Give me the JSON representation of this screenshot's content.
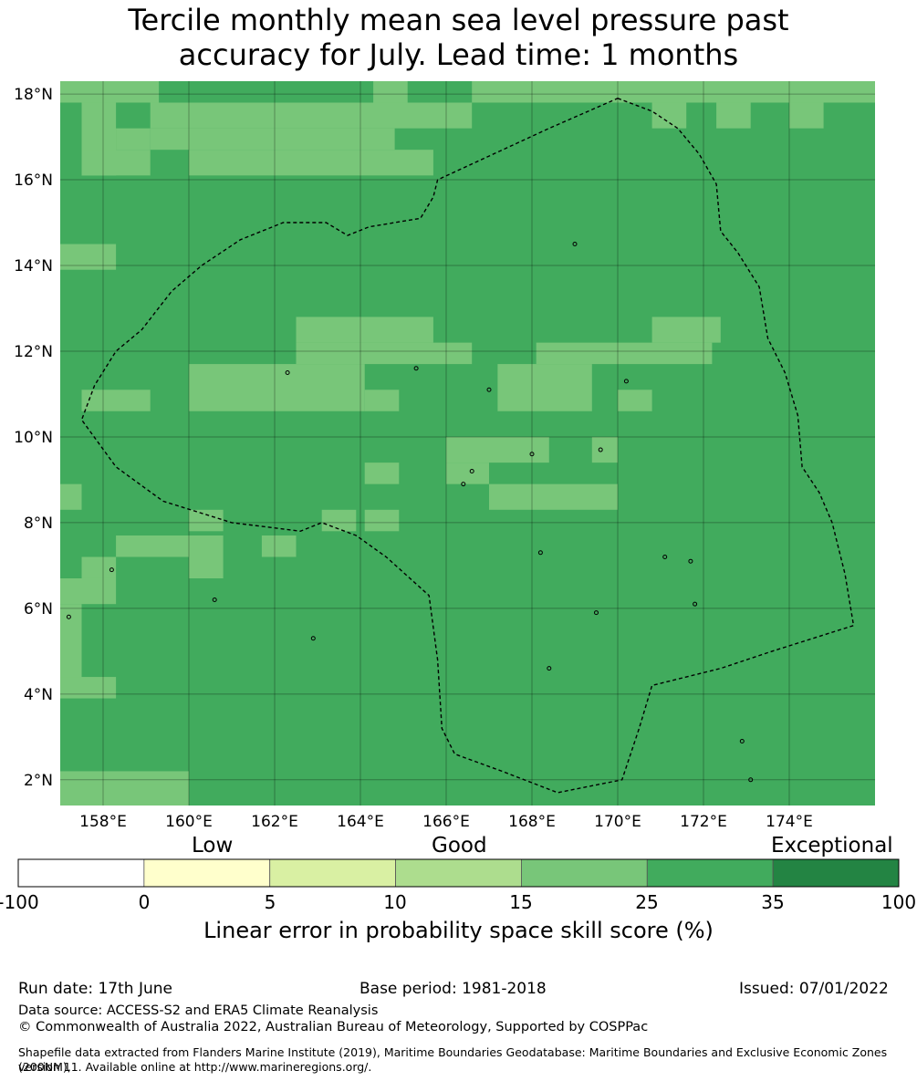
{
  "title_line1": "Tercile monthly mean sea level pressure past",
  "title_line2": "accuracy for July. Lead time: 1 months",
  "map": {
    "lon_labels": [
      "158°E",
      "160°E",
      "162°E",
      "164°E",
      "166°E",
      "168°E",
      "170°E",
      "172°E",
      "174°E"
    ],
    "lat_labels": [
      "18°N",
      "16°N",
      "14°N",
      "12°N",
      "10°N",
      "8°N",
      "6°N",
      "4°N",
      "2°N"
    ],
    "lon_values": [
      158,
      160,
      162,
      164,
      166,
      168,
      170,
      172,
      174
    ],
    "lat_values": [
      18,
      16,
      14,
      12,
      10,
      8,
      6,
      4,
      2
    ],
    "lon_range": [
      157,
      176
    ],
    "lat_range": [
      1.4,
      18.3
    ],
    "base_color": "#41ab5d",
    "light_color": "#78c679",
    "light_regions": [
      {
        "lon": [
          157,
          159.3
        ],
        "lat": [
          17.8,
          18.3
        ]
      },
      {
        "lon": [
          164.3,
          165.1
        ],
        "lat": [
          17.8,
          18.3
        ]
      },
      {
        "lon": [
          166.6,
          176
        ],
        "lat": [
          17.8,
          18.3
        ]
      },
      {
        "lon": [
          157.5,
          158.3
        ],
        "lat": [
          16.1,
          17.8
        ]
      },
      {
        "lon": [
          158.3,
          159.1
        ],
        "lat": [
          16.7,
          17.2
        ]
      },
      {
        "lon": [
          159.1,
          166.6
        ],
        "lat": [
          17.2,
          17.8
        ]
      },
      {
        "lon": [
          159.1,
          164.8
        ],
        "lat": [
          16.7,
          17.2
        ]
      },
      {
        "lon": [
          157.5,
          159.1
        ],
        "lat": [
          16.1,
          16.7
        ]
      },
      {
        "lon": [
          160.0,
          165.7
        ],
        "lat": [
          16.1,
          16.7
        ]
      },
      {
        "lon": [
          170.8,
          171.6
        ],
        "lat": [
          17.2,
          17.8
        ]
      },
      {
        "lon": [
          172.3,
          173.1
        ],
        "lat": [
          17.2,
          17.8
        ]
      },
      {
        "lon": [
          174.0,
          174.8
        ],
        "lat": [
          17.2,
          17.8
        ]
      },
      {
        "lon": [
          157,
          158.3
        ],
        "lat": [
          13.9,
          14.5
        ]
      },
      {
        "lon": [
          162.5,
          165.7
        ],
        "lat": [
          12.2,
          12.8
        ]
      },
      {
        "lon": [
          162.5,
          166.6
        ],
        "lat": [
          11.7,
          12.2
        ]
      },
      {
        "lon": [
          160.0,
          164.1
        ],
        "lat": [
          10.6,
          11.7
        ]
      },
      {
        "lon": [
          157.5,
          159.1
        ],
        "lat": [
          10.6,
          11.1
        ]
      },
      {
        "lon": [
          164.1,
          164.9
        ],
        "lat": [
          10.6,
          11.1
        ]
      },
      {
        "lon": [
          168.1,
          172.2
        ],
        "lat": [
          11.7,
          12.2
        ]
      },
      {
        "lon": [
          170.8,
          172.4
        ],
        "lat": [
          12.2,
          12.8
        ]
      },
      {
        "lon": [
          167.2,
          169.4
        ],
        "lat": [
          10.6,
          11.7
        ]
      },
      {
        "lon": [
          170.0,
          170.8
        ],
        "lat": [
          10.6,
          11.1
        ]
      },
      {
        "lon": [
          166.0,
          168.4
        ],
        "lat": [
          9.4,
          10.0
        ]
      },
      {
        "lon": [
          169.4,
          170.0
        ],
        "lat": [
          9.4,
          10.0
        ]
      },
      {
        "lon": [
          164.1,
          164.9
        ],
        "lat": [
          8.9,
          9.4
        ]
      },
      {
        "lon": [
          166.0,
          167.0
        ],
        "lat": [
          8.9,
          9.4
        ]
      },
      {
        "lon": [
          167.0,
          170.0
        ],
        "lat": [
          8.3,
          8.9
        ]
      },
      {
        "lon": [
          157,
          157.5
        ],
        "lat": [
          8.3,
          8.9
        ]
      },
      {
        "lon": [
          160.0,
          160.8
        ],
        "lat": [
          7.8,
          8.3
        ]
      },
      {
        "lon": [
          163.1,
          163.9
        ],
        "lat": [
          7.8,
          8.3
        ]
      },
      {
        "lon": [
          164.1,
          164.9
        ],
        "lat": [
          7.8,
          8.3
        ]
      },
      {
        "lon": [
          158.3,
          160.0
        ],
        "lat": [
          7.2,
          7.7
        ]
      },
      {
        "lon": [
          160.0,
          160.8
        ],
        "lat": [
          6.7,
          7.7
        ]
      },
      {
        "lon": [
          161.7,
          162.5
        ],
        "lat": [
          7.2,
          7.7
        ]
      },
      {
        "lon": [
          157.5,
          158.3
        ],
        "lat": [
          6.7,
          7.2
        ]
      },
      {
        "lon": [
          157,
          158.3
        ],
        "lat": [
          6.1,
          6.7
        ]
      },
      {
        "lon": [
          157,
          157.5
        ],
        "lat": [
          3.9,
          6.1
        ]
      },
      {
        "lon": [
          157,
          158.3
        ],
        "lat": [
          3.9,
          4.4
        ]
      },
      {
        "lon": [
          157,
          160.0
        ],
        "lat": [
          1.9,
          2.2
        ]
      },
      {
        "lon": [
          157,
          160.0
        ],
        "lat": [
          1.4,
          1.9
        ]
      },
      {
        "lon": [
          157,
          157.5
        ],
        "lat": [
          1.4,
          1.6
        ]
      }
    ],
    "eez_boundary": [
      [
        170.0,
        17.9
      ],
      [
        170.8,
        17.6
      ],
      [
        171.4,
        17.2
      ],
      [
        171.9,
        16.6
      ],
      [
        172.3,
        15.9
      ],
      [
        172.4,
        14.8
      ],
      [
        172.8,
        14.3
      ],
      [
        173.3,
        13.5
      ],
      [
        173.5,
        12.3
      ],
      [
        173.9,
        11.5
      ],
      [
        174.2,
        10.5
      ],
      [
        174.3,
        9.3
      ],
      [
        174.7,
        8.7
      ],
      [
        175.0,
        8.0
      ],
      [
        175.3,
        6.8
      ],
      [
        175.5,
        5.6
      ],
      [
        173.6,
        5.0
      ],
      [
        172.4,
        4.6
      ],
      [
        170.8,
        4.2
      ],
      [
        170.5,
        3.2
      ],
      [
        170.1,
        2.0
      ],
      [
        168.6,
        1.7
      ],
      [
        167.3,
        2.2
      ],
      [
        166.2,
        2.6
      ],
      [
        165.9,
        3.2
      ],
      [
        165.8,
        4.8
      ],
      [
        165.6,
        6.3
      ],
      [
        164.6,
        7.2
      ],
      [
        163.9,
        7.7
      ],
      [
        163.1,
        8.0
      ],
      [
        162.6,
        7.8
      ],
      [
        161.0,
        8.0
      ],
      [
        159.4,
        8.5
      ],
      [
        158.3,
        9.3
      ],
      [
        157.5,
        10.4
      ],
      [
        157.8,
        11.2
      ],
      [
        158.3,
        12.0
      ],
      [
        158.9,
        12.5
      ],
      [
        159.6,
        13.4
      ],
      [
        160.3,
        14.0
      ],
      [
        161.2,
        14.6
      ],
      [
        162.2,
        15.0
      ],
      [
        163.2,
        15.0
      ],
      [
        163.7,
        14.7
      ],
      [
        164.2,
        14.9
      ],
      [
        165.4,
        15.1
      ],
      [
        165.7,
        15.6
      ],
      [
        165.8,
        16.0
      ],
      [
        167.1,
        16.6
      ],
      [
        168.4,
        17.2
      ],
      [
        170.0,
        17.9
      ]
    ],
    "islands": [
      [
        158.2,
        6.9
      ],
      [
        162.9,
        5.3
      ],
      [
        166.4,
        8.9
      ],
      [
        168.0,
        9.6
      ],
      [
        169.6,
        9.7
      ],
      [
        171.1,
        7.2
      ],
      [
        171.7,
        7.1
      ],
      [
        172.9,
        2.9
      ],
      [
        173.1,
        2.0
      ],
      [
        168.2,
        7.3
      ],
      [
        170.2,
        11.3
      ],
      [
        167.0,
        11.1
      ],
      [
        165.3,
        11.6
      ],
      [
        162.3,
        11.5
      ],
      [
        169.0,
        14.5
      ],
      [
        160.6,
        6.2
      ],
      [
        157.2,
        5.8
      ],
      [
        166.6,
        9.2
      ],
      [
        168.4,
        4.6
      ],
      [
        169.5,
        5.9
      ],
      [
        171.8,
        6.1
      ]
    ]
  },
  "colorbar": {
    "words": [
      "Low",
      "Good",
      "Exceptional"
    ],
    "ticks": [
      "-100",
      "0",
      "5",
      "10",
      "15",
      "25",
      "35",
      "100"
    ],
    "colors": [
      "#ffffff",
      "#ffffcc",
      "#d9f0a3",
      "#addd8e",
      "#78c679",
      "#41ab5d",
      "#238443"
    ],
    "label": "Linear error in probability space skill score (%)"
  },
  "footer": {
    "run_date": "Run date: 17th June",
    "base_period": "Base period: 1981-2018",
    "issued": "Issued: 07/01/2022",
    "data_source": "Data source: ACCESS-S2 and ERA5 Climate Reanalysis",
    "copyright": "© Commonwealth of Australia 2022, Australian Bureau of Meteorology, Supported by COSPPac",
    "shapefile_line1": "Shapefile data extracted from Flanders Marine Institute (2019), Maritime Boundaries Geodatabase: Maritime Boundaries and Exclusive Economic Zones (200NM),",
    "shapefile_line2": "version 11. Available online at http://www.marineregions.org/."
  }
}
